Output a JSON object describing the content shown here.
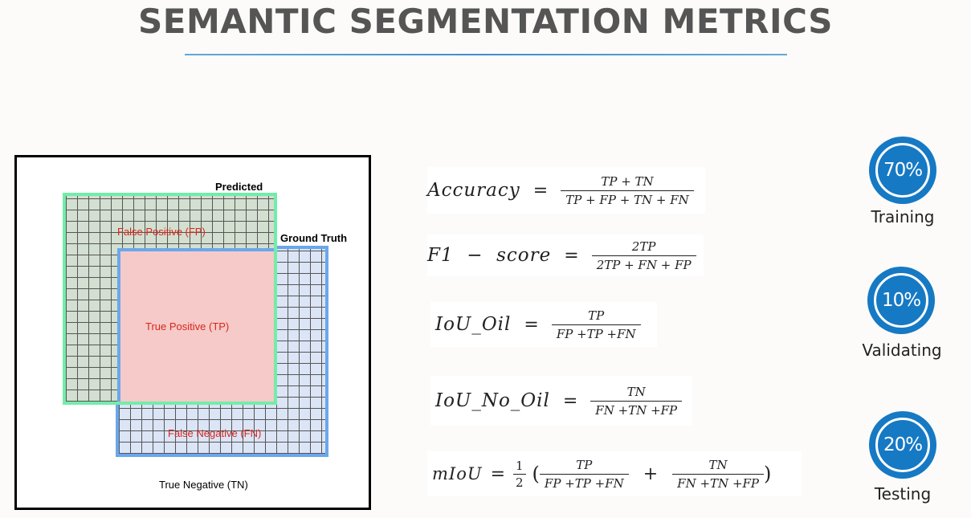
{
  "title": "SEMANTIC SEGMENTATION METRICS",
  "diagram": {
    "predicted": "Predicted",
    "ground_truth": "Ground Truth",
    "false_positive": "False Positive (FP)",
    "true_positive": "True Positive (TP)",
    "false_negative": "False Negative (FN)",
    "true_negative": "True Negative (TN)"
  },
  "formulas": {
    "accuracy": {
      "lhs": "Accuracy",
      "eq": "=",
      "num": "TP + TN",
      "den": "TP + FP + TN + FN"
    },
    "f1": {
      "lhs": "F1  −  score",
      "eq": "=",
      "num": "2TP",
      "den": "2TP + FN + FP"
    },
    "iou_oil": {
      "lhs": "IoU_Oil",
      "eq": "=",
      "num": "TP",
      "den": "FP +TP +FN"
    },
    "iou_no_oil": {
      "lhs": "IoU_No_Oil",
      "eq": "=",
      "num": "TN",
      "den": "FN +TN +FP"
    },
    "miou": {
      "lhs": "mIoU",
      "eq": "=",
      "half_num": "1",
      "half_den": "2",
      "open": "(",
      "num1": "TP",
      "den1": "FP +TP +FN",
      "plus": "+",
      "num2": "TN",
      "den2": "FN +TN +FP",
      "close": ")"
    }
  },
  "splits": [
    {
      "percent": "70%",
      "label": "Training"
    },
    {
      "percent": "10%",
      "label": "Validating"
    },
    {
      "percent": "20%",
      "label": "Testing"
    }
  ],
  "colors": {
    "title": "#555555",
    "badge": "#1679c4",
    "predicted_border": "#73ecaa",
    "ground_truth_border": "#6aa7ec",
    "true_positive_fill": "#f5cac8",
    "label_red": "#d9261c"
  }
}
